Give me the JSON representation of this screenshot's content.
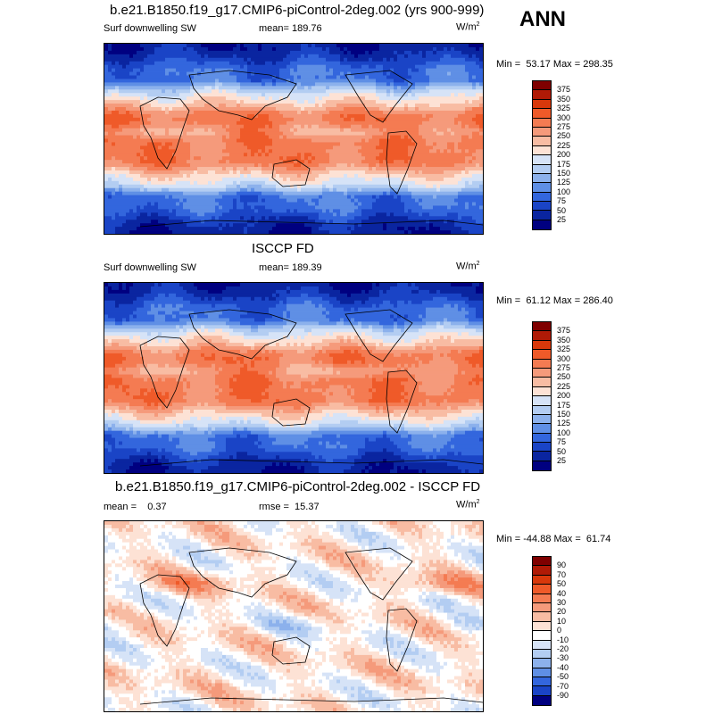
{
  "season": "ANN",
  "panels": [
    {
      "title": "b.e21.B1850.f19_g17.CMIP6-piControl-2deg.002 (yrs 900-999)",
      "left_label": "Surf downwelling SW",
      "center_label": "mean= 189.76",
      "units": "W/m",
      "units_sup": "2",
      "minmax": "Min =  53.17 Max = 298.35",
      "levels": [
        "375",
        "350",
        "325",
        "300",
        "275",
        "250",
        "225",
        "200",
        "175",
        "150",
        "125",
        "100",
        "75",
        "50",
        "25"
      ],
      "colors": [
        "#7f0000",
        "#b01a06",
        "#d8380b",
        "#ef5a29",
        "#f47b52",
        "#f59a7b",
        "#f8bca3",
        "#fde2d5",
        "#d6e3f7",
        "#b3cdf2",
        "#8cb1ec",
        "#5f8fe5",
        "#3366dd",
        "#1a44c6",
        "#0a25a0",
        "#000080"
      ],
      "kind": "sw"
    },
    {
      "title": "ISCCP FD",
      "left_label": "Surf downwelling SW",
      "center_label": "mean= 189.39",
      "units": "W/m",
      "units_sup": "2",
      "minmax": "Min =  61.12 Max = 286.40",
      "levels": [
        "375",
        "350",
        "325",
        "300",
        "275",
        "250",
        "225",
        "200",
        "175",
        "150",
        "125",
        "100",
        "75",
        "50",
        "25"
      ],
      "colors": [
        "#7f0000",
        "#b01a06",
        "#d8380b",
        "#ef5a29",
        "#f47b52",
        "#f59a7b",
        "#f8bca3",
        "#fde2d5",
        "#d6e3f7",
        "#b3cdf2",
        "#8cb1ec",
        "#5f8fe5",
        "#3366dd",
        "#1a44c6",
        "#0a25a0",
        "#000080"
      ],
      "kind": "sw"
    },
    {
      "title": "b.e21.B1850.f19_g17.CMIP6-piControl-2deg.002 - ISCCP FD",
      "left_label": "mean =    0.37",
      "center_label": "rmse =  15.37",
      "units": "W/m",
      "units_sup": "2",
      "minmax": "Min = -44.88 Max =  61.74",
      "levels": [
        "90",
        "70",
        "50",
        "40",
        "30",
        "20",
        "10",
        "0",
        "-10",
        "-20",
        "-30",
        "-40",
        "-50",
        "-70",
        "-90"
      ],
      "colors": [
        "#7f0000",
        "#b01a06",
        "#d8380b",
        "#ef5a29",
        "#f47b52",
        "#f59a7b",
        "#f8bca3",
        "#fde2d5",
        "#ffffff",
        "#d6e3f7",
        "#b3cdf2",
        "#8cb1ec",
        "#5f8fe5",
        "#3366dd",
        "#1a44c6",
        "#000080"
      ],
      "kind": "diff"
    }
  ],
  "chart_data": [
    {
      "type": "heatmap",
      "title": "b.e21.B1850.f19_g17.CMIP6-piControl-2deg.002 (yrs 900-999)",
      "variable": "Surf downwelling SW",
      "units": "W/m2",
      "mean": 189.76,
      "min": 53.17,
      "max": 298.35,
      "contour_levels": [
        25,
        50,
        75,
        100,
        125,
        150,
        175,
        200,
        225,
        250,
        275,
        300,
        325,
        350,
        375
      ]
    },
    {
      "type": "heatmap",
      "title": "ISCCP FD",
      "variable": "Surf downwelling SW",
      "units": "W/m2",
      "mean": 189.39,
      "min": 61.12,
      "max": 286.4,
      "contour_levels": [
        25,
        50,
        75,
        100,
        125,
        150,
        175,
        200,
        225,
        250,
        275,
        300,
        325,
        350,
        375
      ]
    },
    {
      "type": "heatmap",
      "title": "b.e21.B1850.f19_g17.CMIP6-piControl-2deg.002 - ISCCP FD",
      "units": "W/m2",
      "mean": 0.37,
      "rmse": 15.37,
      "min": -44.88,
      "max": 61.74,
      "contour_levels": [
        -90,
        -70,
        -50,
        -40,
        -30,
        -20,
        -10,
        0,
        10,
        20,
        30,
        40,
        50,
        70,
        90
      ]
    }
  ]
}
